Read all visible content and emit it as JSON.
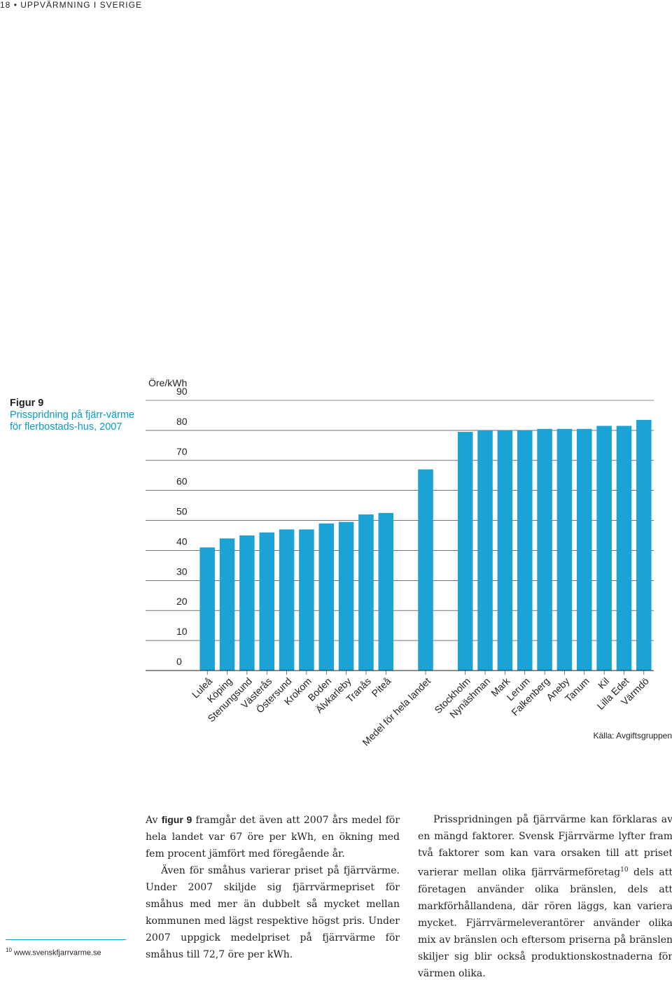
{
  "page": {
    "number": "18",
    "bullet": "•",
    "section": "UPPVÄRMNING I SVERIGE"
  },
  "figure": {
    "label": "Figur 9",
    "title": "Prisspridning på fjärr-värme för flerbostads-hus, 2007"
  },
  "chart_data": {
    "type": "bar",
    "unit_label": "Öre/kWh",
    "ylim": [
      0,
      90
    ],
    "yticks": [
      0,
      10,
      20,
      30,
      40,
      50,
      60,
      70,
      80,
      90
    ],
    "grid": false,
    "categories": [
      "Luleå",
      "Köping",
      "Stenungsund",
      "Västerås",
      "Östersund",
      "Krokom",
      "Boden",
      "Älvkarleby",
      "Tranås",
      "Piteå",
      "Medel för hela landet",
      "Stockholm",
      "Nynäshman",
      "Mark",
      "Lerum",
      "Falkenberg",
      "Aneby",
      "Tanum",
      "Kil",
      "Lilla Edet",
      "Värmdö"
    ],
    "values": [
      41,
      44,
      45,
      46,
      47,
      47,
      49,
      49.5,
      52,
      52.5,
      67,
      79.5,
      80,
      80,
      80,
      80.5,
      80.5,
      80.5,
      81.5,
      81.5,
      83.5
    ],
    "slots": [
      0,
      1,
      2,
      3,
      4,
      5,
      6,
      7,
      8,
      9,
      11,
      13,
      14,
      15,
      16,
      17,
      18,
      19,
      20,
      21,
      22
    ],
    "bar_color": "#1aa3d4",
    "source": "Källa: Avgiftsgruppen"
  },
  "footnote": {
    "mark": "10",
    "text": "www.svenskfjarrvarme.se"
  },
  "body": {
    "left_p1_lead": "Av ",
    "left_p1_bold": "figur 9",
    "left_p1_rest": " framgår det även att 2007 års medel för hela landet var 67 öre per kWh, en ökning med fem procent jämfört med föregående år.",
    "left_p2": "Även för småhus varierar priset på fjärrvärme. Under 2007 skiljde sig fjärrvärmepriset för småhus med mer än dubbelt så mycket mellan kommunen med lägst respektive högst pris. Under 2007 uppgick medelpriset på fjärrvärme för småhus till 72,7 öre per kWh.",
    "right_p1_a": "Prisspridningen på fjärrvärme kan förklaras av en mängd faktorer. Svensk Fjärrvärme lyfter fram två faktorer som kan vara orsaken till att priset varierar mellan olika fjärrvärmeföretag",
    "right_p1_sup": "10",
    "right_p1_b": " dels att företagen använder olika bränslen, dels att markförhållandena, där rören läggs, kan variera mycket. Fjärrvärmeleverantörer använder olika mix av bränslen och eftersom priserna på bränslen skiljer sig blir också produktionskostnaderna för värmen olika."
  }
}
